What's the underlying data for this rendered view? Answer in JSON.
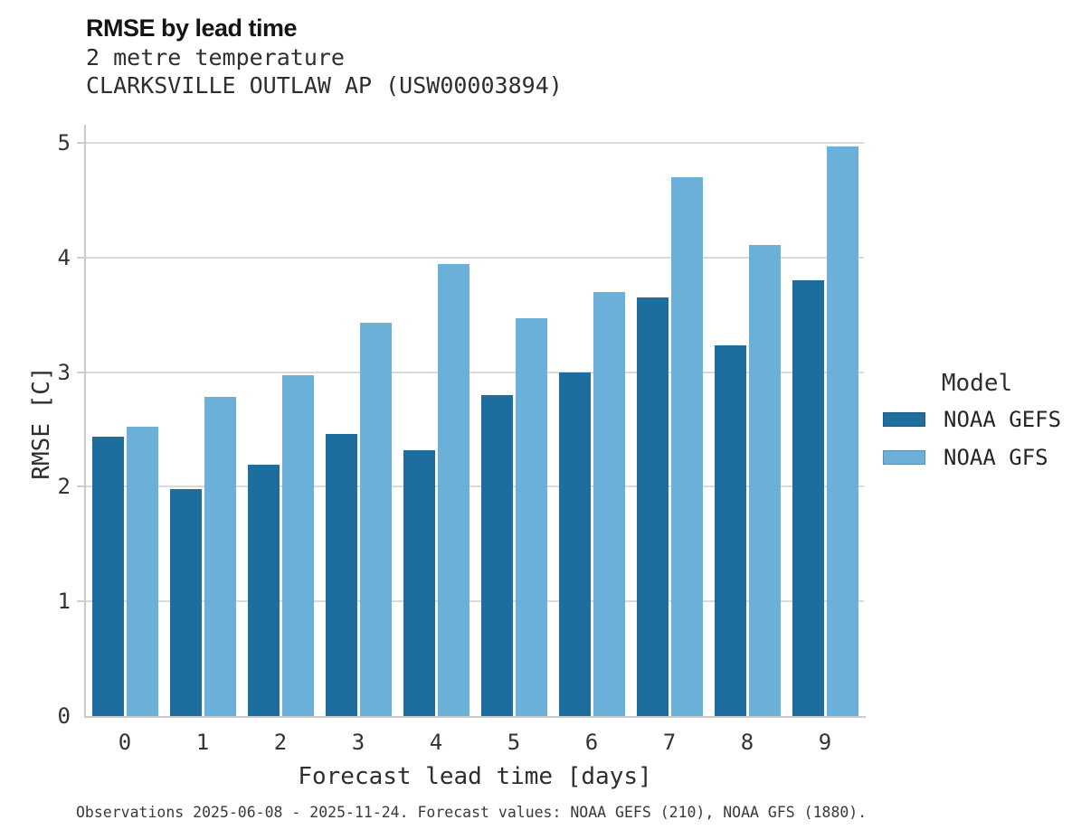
{
  "header": {
    "title": "RMSE by lead time",
    "subtitle_line1": "2 metre temperature",
    "subtitle_line2": "CLARKSVILLE OUTLAW AP (USW00003894)"
  },
  "chart_data": {
    "type": "bar",
    "title": "RMSE by lead time",
    "subtitle": [
      "2 metre temperature",
      "CLARKSVILLE OUTLAW AP (USW00003894)"
    ],
    "categories": [
      "0",
      "1",
      "2",
      "3",
      "4",
      "5",
      "6",
      "7",
      "8",
      "9"
    ],
    "series": [
      {
        "name": "NOAA GEFS",
        "color": "#1d6e9e",
        "values": [
          2.44,
          1.98,
          2.19,
          2.46,
          2.32,
          2.8,
          3.0,
          3.65,
          3.23,
          3.8
        ]
      },
      {
        "name": "NOAA GFS",
        "color": "#6bb0d9",
        "values": [
          2.52,
          2.78,
          2.97,
          3.43,
          3.94,
          3.47,
          3.7,
          4.7,
          4.11,
          4.97
        ]
      }
    ],
    "xlabel": "Forecast lead time [days]",
    "ylabel": "RMSE [C]",
    "ylim": [
      0,
      5.14
    ],
    "yticks": [
      0,
      1,
      2,
      3,
      4,
      5
    ],
    "grid": "horizontal",
    "legend_title": "Model",
    "legend_position": "right"
  },
  "legend": {
    "title": "Model",
    "items": [
      {
        "label": "NOAA GEFS",
        "color": "#1d6e9e"
      },
      {
        "label": "NOAA GFS",
        "color": "#6bb0d9"
      }
    ]
  },
  "caption": "Observations 2025-06-08 - 2025-11-24. Forecast values: NOAA GEFS (210), NOAA GFS (1880).",
  "colors": {
    "bar_dark": "#1d6e9e",
    "bar_light": "#6bb0d9",
    "gridline": "#dadada",
    "spine": "#c9c9c9",
    "title_text": "#141414",
    "body_text": "#333333",
    "background": "#ffffff"
  }
}
